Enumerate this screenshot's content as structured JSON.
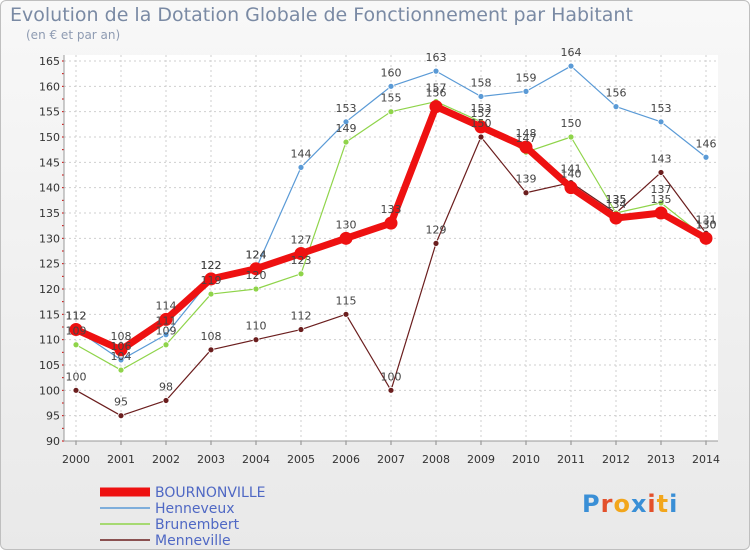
{
  "title": "Evolution de la Dotation Globale de Fonctionnement par Habitant",
  "subtitle": "(en € et par an)",
  "logo": {
    "text": "Proxiti",
    "colors": [
      "#3a8fd6",
      "#e3502b",
      "#f2a61c",
      "#3a8fd6",
      "#e3502b",
      "#f2a61c",
      "#3a8fd6"
    ]
  },
  "chart_data": {
    "type": "line",
    "x": [
      "2000",
      "2001",
      "2002",
      "2003",
      "2004",
      "2005",
      "2006",
      "2007",
      "2008",
      "2009",
      "2010",
      "2011",
      "2012",
      "2013",
      "2014"
    ],
    "ylim": [
      90,
      165
    ],
    "yticks": [
      90,
      95,
      100,
      105,
      110,
      115,
      120,
      125,
      130,
      135,
      140,
      145,
      150,
      155,
      160,
      165
    ],
    "grid": true,
    "legend_position": "bottom-left",
    "series": [
      {
        "name": "Menneville",
        "color": "#6b1e1e",
        "width": 1.2,
        "values": [
          100,
          95,
          98,
          108,
          110,
          112,
          115,
          100,
          129,
          150,
          139,
          141,
          135,
          143,
          131
        ]
      },
      {
        "name": "Brunembert",
        "color": "#8fd44a",
        "width": 1.2,
        "values": [
          109,
          104,
          109,
          119,
          120,
          123,
          149,
          155,
          157,
          153,
          147,
          150,
          135,
          137,
          130
        ]
      },
      {
        "name": "Henneveux",
        "color": "#5a9ad6",
        "width": 1.2,
        "values": [
          112,
          106,
          111,
          122,
          124,
          144,
          153,
          160,
          163,
          158,
          159,
          164,
          156,
          153,
          146
        ]
      },
      {
        "name": "BOURNONVILLE",
        "color": "#ee1111",
        "width": 7,
        "values": [
          112,
          108,
          114,
          122,
          124,
          127,
          130,
          133,
          156,
          152,
          148,
          140,
          134,
          135,
          130
        ]
      }
    ],
    "legend_order": [
      "BOURNONVILLE",
      "Henneveux",
      "Brunembert",
      "Menneville"
    ]
  }
}
